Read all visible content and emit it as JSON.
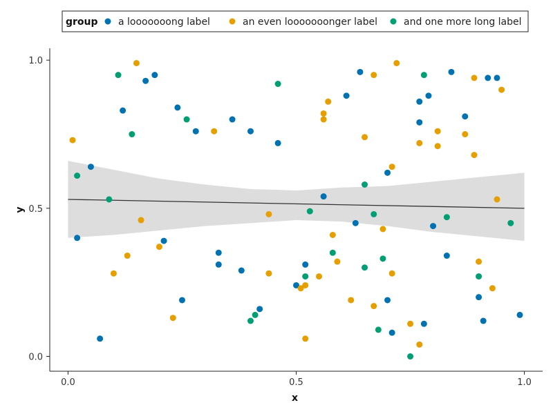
{
  "chart_data": {
    "type": "scatter",
    "title": "",
    "xlabel": "x",
    "ylabel": "y",
    "xlim": [
      -0.04,
      1.04
    ],
    "ylim": [
      -0.05,
      1.04
    ],
    "xticks": [
      0.0,
      0.5,
      1.0
    ],
    "xtick_labels": [
      "0.0",
      "0.5",
      "1.0"
    ],
    "yticks": [
      0.0,
      0.5,
      1.0
    ],
    "ytick_labels": [
      "0.0",
      "0.5",
      "1.0"
    ],
    "grid": false,
    "legend": {
      "title": "group",
      "placement": "top"
    },
    "series": [
      {
        "name": "a looooooong label",
        "color": "#0072b2",
        "points": [
          [
            0.02,
            0.4
          ],
          [
            0.05,
            0.64
          ],
          [
            0.07,
            0.06
          ],
          [
            0.12,
            0.83
          ],
          [
            0.17,
            0.93
          ],
          [
            0.19,
            0.95
          ],
          [
            0.21,
            0.39
          ],
          [
            0.24,
            0.84
          ],
          [
            0.25,
            0.19
          ],
          [
            0.28,
            0.76
          ],
          [
            0.33,
            0.35
          ],
          [
            0.33,
            0.31
          ],
          [
            0.36,
            0.8
          ],
          [
            0.38,
            0.29
          ],
          [
            0.4,
            0.76
          ],
          [
            0.42,
            0.16
          ],
          [
            0.46,
            0.72
          ],
          [
            0.5,
            0.24
          ],
          [
            0.52,
            0.31
          ],
          [
            0.56,
            0.54
          ],
          [
            0.61,
            0.88
          ],
          [
            0.63,
            0.45
          ],
          [
            0.64,
            0.96
          ],
          [
            0.7,
            0.62
          ],
          [
            0.7,
            0.19
          ],
          [
            0.71,
            0.08
          ],
          [
            0.77,
            0.86
          ],
          [
            0.77,
            0.79
          ],
          [
            0.78,
            0.11
          ],
          [
            0.79,
            0.88
          ],
          [
            0.8,
            0.44
          ],
          [
            0.83,
            0.34
          ],
          [
            0.84,
            0.96
          ],
          [
            0.87,
            0.81
          ],
          [
            0.9,
            0.2
          ],
          [
            0.91,
            0.12
          ],
          [
            0.92,
            0.94
          ],
          [
            0.94,
            0.94
          ],
          [
            0.99,
            0.14
          ]
        ]
      },
      {
        "name": "an even looooooonger label",
        "color": "#e69f00",
        "points": [
          [
            0.01,
            0.73
          ],
          [
            0.1,
            0.28
          ],
          [
            0.13,
            0.34
          ],
          [
            0.15,
            0.99
          ],
          [
            0.16,
            0.46
          ],
          [
            0.2,
            0.37
          ],
          [
            0.23,
            0.13
          ],
          [
            0.32,
            0.76
          ],
          [
            0.44,
            0.28
          ],
          [
            0.44,
            0.48
          ],
          [
            0.51,
            0.23
          ],
          [
            0.52,
            0.06
          ],
          [
            0.52,
            0.24
          ],
          [
            0.55,
            0.27
          ],
          [
            0.56,
            0.8
          ],
          [
            0.56,
            0.82
          ],
          [
            0.57,
            0.86
          ],
          [
            0.58,
            0.41
          ],
          [
            0.59,
            0.32
          ],
          [
            0.62,
            0.19
          ],
          [
            0.65,
            0.74
          ],
          [
            0.67,
            0.95
          ],
          [
            0.67,
            0.17
          ],
          [
            0.69,
            0.43
          ],
          [
            0.71,
            0.64
          ],
          [
            0.71,
            0.28
          ],
          [
            0.72,
            0.99
          ],
          [
            0.75,
            0.11
          ],
          [
            0.77,
            0.04
          ],
          [
            0.77,
            0.72
          ],
          [
            0.81,
            0.76
          ],
          [
            0.81,
            0.71
          ],
          [
            0.87,
            0.75
          ],
          [
            0.89,
            0.94
          ],
          [
            0.89,
            0.68
          ],
          [
            0.9,
            0.32
          ],
          [
            0.93,
            0.23
          ],
          [
            0.94,
            0.53
          ],
          [
            0.95,
            0.9
          ]
        ]
      },
      {
        "name": "and one more long label",
        "color": "#009e73",
        "points": [
          [
            0.02,
            0.61
          ],
          [
            0.09,
            0.53
          ],
          [
            0.11,
            0.95
          ],
          [
            0.14,
            0.75
          ],
          [
            0.26,
            0.8
          ],
          [
            0.4,
            0.12
          ],
          [
            0.41,
            0.14
          ],
          [
            0.46,
            0.92
          ],
          [
            0.52,
            0.27
          ],
          [
            0.53,
            0.49
          ],
          [
            0.58,
            0.35
          ],
          [
            0.65,
            0.58
          ],
          [
            0.65,
            0.3
          ],
          [
            0.67,
            0.48
          ],
          [
            0.68,
            0.09
          ],
          [
            0.69,
            0.33
          ],
          [
            0.75,
            0.0
          ],
          [
            0.78,
            0.95
          ],
          [
            0.83,
            0.47
          ],
          [
            0.9,
            0.27
          ],
          [
            0.97,
            0.45
          ]
        ]
      }
    ],
    "trend": {
      "type": "linear-fit",
      "x": [
        0.0,
        1.0
      ],
      "y": [
        0.53,
        0.5
      ],
      "band_x": [
        0.0,
        0.1,
        0.2,
        0.3,
        0.4,
        0.5,
        0.6,
        0.7,
        0.8,
        0.9,
        1.0
      ],
      "band_lower": [
        0.4,
        0.41,
        0.425,
        0.44,
        0.45,
        0.46,
        0.455,
        0.44,
        0.42,
        0.405,
        0.39
      ],
      "band_upper": [
        0.66,
        0.63,
        0.6,
        0.58,
        0.565,
        0.56,
        0.57,
        0.575,
        0.59,
        0.605,
        0.62
      ],
      "line_color": "#333333",
      "band_color": "#dddddd"
    }
  }
}
